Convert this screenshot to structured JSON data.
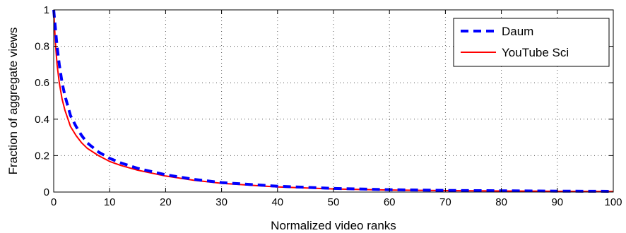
{
  "chart_data": {
    "type": "line",
    "title": "",
    "xlabel": "Normalized video ranks",
    "ylabel": "Fraction of aggregate views",
    "xlim": [
      0,
      100
    ],
    "ylim": [
      0,
      1
    ],
    "xticks": [
      0,
      10,
      20,
      30,
      40,
      50,
      60,
      70,
      80,
      90,
      100
    ],
    "yticks": [
      0,
      0.2,
      0.4,
      0.6,
      0.8,
      1
    ],
    "ytick_labels": [
      "0",
      "0.2",
      "0.4",
      "0.6",
      "0.8",
      "1"
    ],
    "grid": true,
    "legend_position": "top-right",
    "series": [
      {
        "name": "Daum",
        "color": "#0000ff",
        "style": "dashed",
        "x": [
          0,
          0.3,
          0.6,
          1,
          1.5,
          2,
          3,
          4,
          5,
          6,
          8,
          10,
          12,
          15,
          20,
          25,
          30,
          40,
          50,
          60,
          70,
          80,
          90,
          100
        ],
        "y": [
          1,
          0.9,
          0.8,
          0.7,
          0.6,
          0.53,
          0.42,
          0.36,
          0.31,
          0.27,
          0.22,
          0.185,
          0.16,
          0.13,
          0.095,
          0.07,
          0.052,
          0.032,
          0.02,
          0.013,
          0.009,
          0.007,
          0.005,
          0.004
        ]
      },
      {
        "name": "YouTube Sci",
        "color": "#ff0000",
        "style": "solid",
        "x": [
          0,
          0.3,
          0.6,
          1,
          1.5,
          2,
          3,
          4,
          5,
          6,
          8,
          10,
          12,
          15,
          20,
          25,
          30,
          40,
          50,
          60,
          70,
          80,
          90,
          100
        ],
        "y": [
          1,
          0.82,
          0.7,
          0.6,
          0.51,
          0.45,
          0.36,
          0.31,
          0.27,
          0.24,
          0.2,
          0.168,
          0.146,
          0.12,
          0.088,
          0.065,
          0.048,
          0.028,
          0.017,
          0.011,
          0.008,
          0.006,
          0.004,
          0.003
        ]
      }
    ]
  }
}
